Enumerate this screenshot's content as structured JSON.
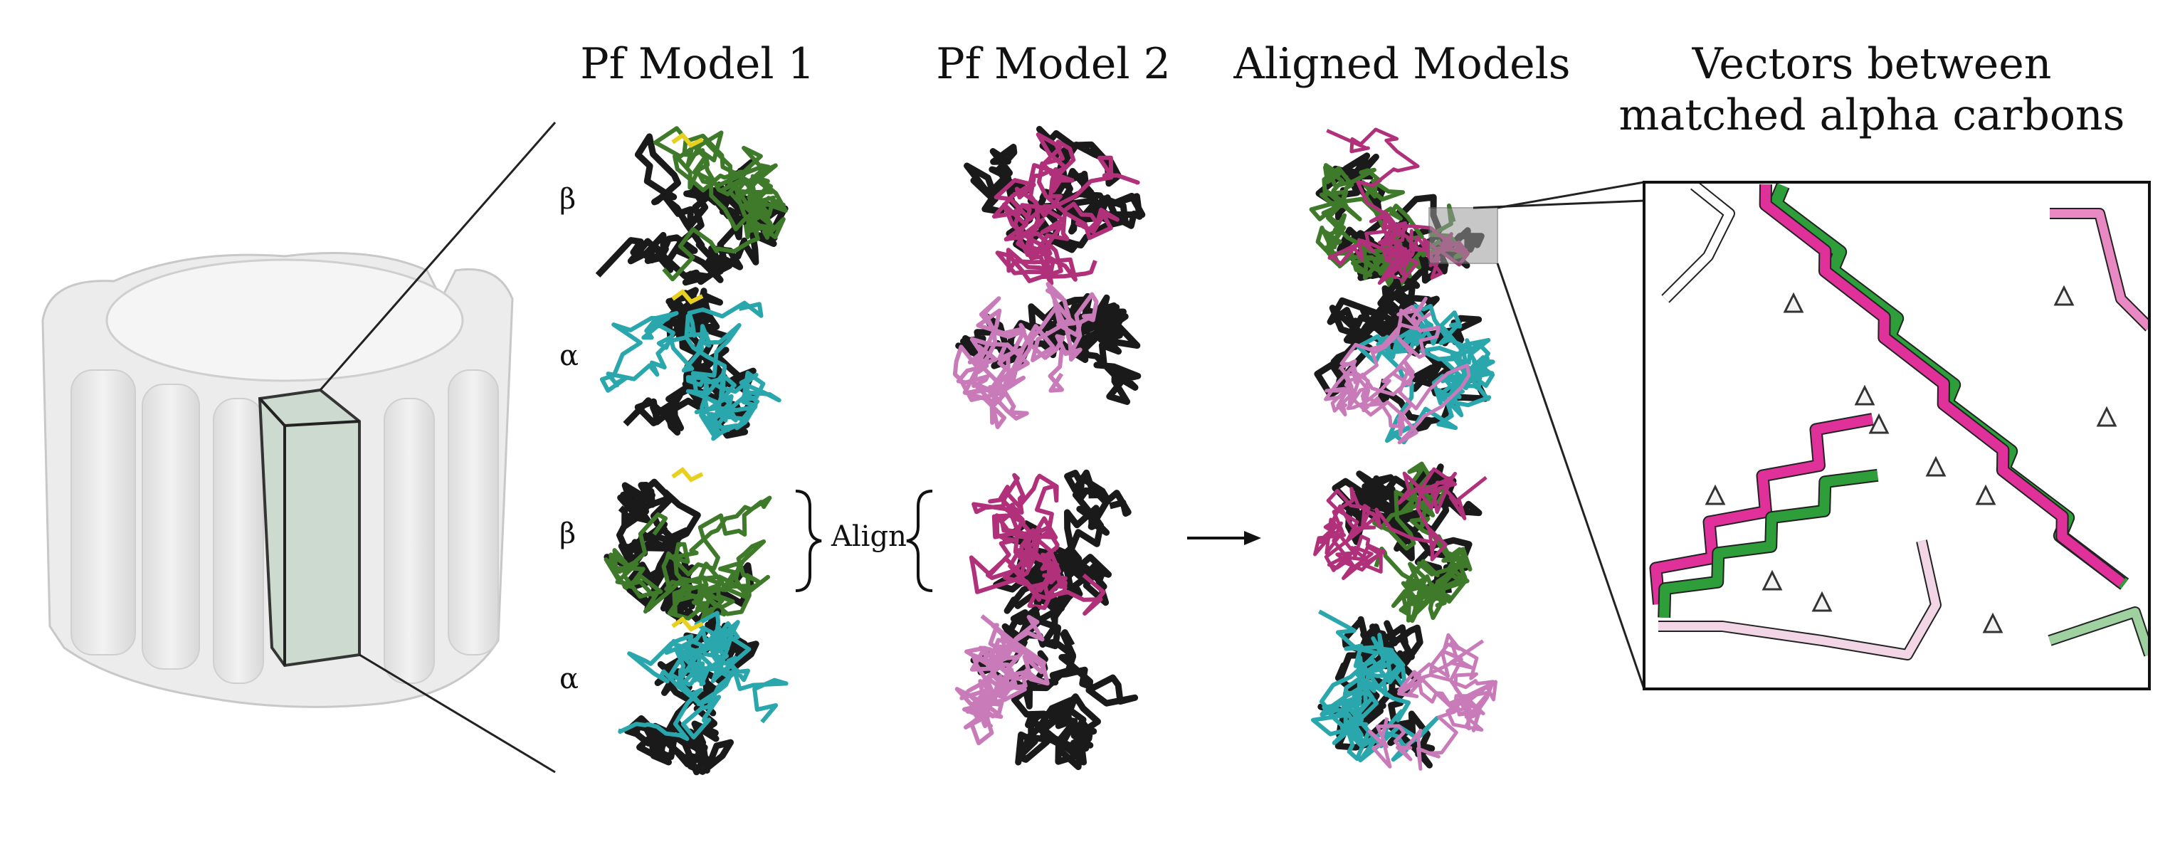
{
  "titles": {
    "model1": "Pf Model 1",
    "model2": "Pf Model 2",
    "aligned": "Aligned Models",
    "vectors_line1": "Vectors between",
    "vectors_line2": "matched alpha carbons"
  },
  "subunit_labels": [
    "β",
    "α",
    "β",
    "α"
  ],
  "align_label": "Align",
  "colors": {
    "beta_green": "#3e7a2a",
    "alpha_cyan": "#2aa6ad",
    "magenta_dark": "#b0307a",
    "magenta_light": "#c87bb8",
    "ligand_yellow": "#e8d020",
    "vector_green": "#2e9e3a",
    "vector_pink": "#e0309a",
    "cylinder_gray": "#e6e6e6"
  },
  "icons": [
    "brace-right-icon",
    "brace-left-icon",
    "arrow-right-icon",
    "arrowhead-vector-icon"
  ]
}
